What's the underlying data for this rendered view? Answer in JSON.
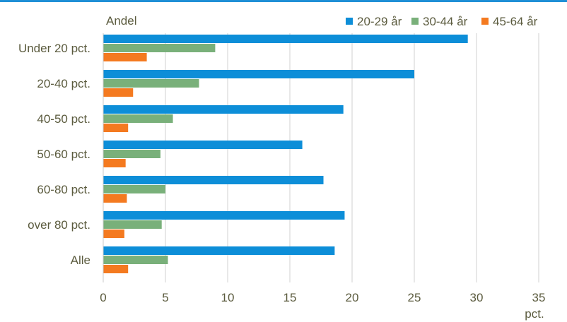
{
  "chart_data": {
    "type": "bar",
    "orientation": "horizontal",
    "ylabel": "Andel",
    "xlabel": "pct.",
    "categories": [
      "Under 20 pct.",
      "20-40 pct.",
      "40-50 pct.",
      "50-60 pct.",
      "60-80 pct.",
      "over 80 pct.",
      "Alle"
    ],
    "series": [
      {
        "name": "20-29 år",
        "color": "#0d8ed8",
        "values": [
          29.3,
          25.0,
          19.3,
          16.0,
          17.7,
          19.4,
          18.6
        ]
      },
      {
        "name": "30-44 år",
        "color": "#79b07a",
        "values": [
          9.0,
          7.7,
          5.6,
          4.6,
          5.0,
          4.7,
          5.2
        ]
      },
      {
        "name": "45-64 år",
        "color": "#f47a20",
        "values": [
          3.5,
          2.4,
          2.0,
          1.8,
          1.9,
          1.7,
          2.0
        ]
      }
    ],
    "xlim": [
      0,
      35
    ],
    "xticks": [
      0,
      5,
      10,
      15,
      20,
      25,
      30,
      35
    ],
    "grid": "vertical",
    "legend_position": "top-right"
  }
}
